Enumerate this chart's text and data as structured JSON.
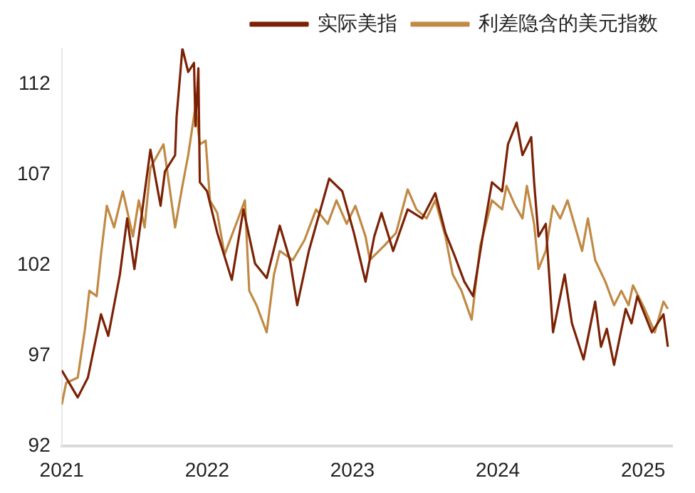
{
  "chart_data": {
    "type": "line",
    "legend": "top right",
    "grid": false,
    "marker": "none",
    "line_style": "solid",
    "xlim": [
      2021,
      2025.2
    ],
    "xticks": [
      2021,
      2022,
      2023,
      2024,
      2025
    ],
    "ylim": [
      92,
      114
    ],
    "yticks": [
      92,
      97,
      102,
      107,
      112
    ],
    "series": [
      {
        "name": "实际美指",
        "color": "#7b2205",
        "x": [
          2021.0,
          2021.11,
          2021.18,
          2021.27,
          2021.32,
          2021.4,
          2021.45,
          2021.5,
          2021.53,
          2021.61,
          2021.68,
          2021.71,
          2021.78,
          2021.79,
          2021.83,
          2021.87,
          2021.91,
          2021.92,
          2021.94,
          2021.95,
          2022.0,
          2022.07,
          2022.17,
          2022.25,
          2022.33,
          2022.41,
          2022.5,
          2022.57,
          2022.62,
          2022.7,
          2022.84,
          2022.93,
          2023.01,
          2023.09,
          2023.15,
          2023.2,
          2023.28,
          2023.38,
          2023.48,
          2023.57,
          2023.64,
          2023.7,
          2023.77,
          2023.83,
          2023.9,
          2023.96,
          2024.03,
          2024.07,
          2024.13,
          2024.17,
          2024.23,
          2024.25,
          2024.28,
          2024.33,
          2024.38,
          2024.46,
          2024.51,
          2024.59,
          2024.67,
          2024.71,
          2024.75,
          2024.8,
          2024.88,
          2024.92,
          2024.96,
          2025.06,
          2025.14,
          2025.17
        ],
        "values": [
          96.2,
          94.7,
          95.8,
          99.3,
          98.1,
          101.5,
          104.6,
          101.8,
          103.6,
          108.4,
          105.3,
          107.2,
          108.1,
          110.2,
          114.0,
          112.7,
          113.2,
          109.7,
          112.9,
          106.6,
          106.1,
          103.8,
          101.2,
          105.1,
          102.1,
          101.3,
          104.2,
          102.3,
          99.8,
          102.8,
          106.8,
          106.1,
          103.8,
          101.1,
          103.6,
          104.9,
          102.8,
          105.1,
          104.6,
          106.0,
          103.8,
          102.6,
          101.1,
          100.3,
          103.8,
          106.6,
          106.1,
          108.7,
          109.9,
          108.1,
          109.1,
          106.6,
          103.6,
          104.3,
          98.3,
          101.5,
          98.8,
          96.8,
          100.0,
          97.5,
          98.5,
          96.5,
          99.6,
          98.8,
          100.3,
          98.3,
          99.3,
          97.5
        ]
      },
      {
        "name": "利差隐含的美元指数",
        "color": "#c08a45",
        "x": [
          2021.0,
          2021.03,
          2021.11,
          2021.16,
          2021.19,
          2021.24,
          2021.27,
          2021.31,
          2021.36,
          2021.42,
          2021.49,
          2021.53,
          2021.57,
          2021.61,
          2021.7,
          2021.78,
          2021.83,
          2021.87,
          2021.92,
          2021.95,
          2021.99,
          2022.02,
          2022.07,
          2022.12,
          2022.2,
          2022.26,
          2022.29,
          2022.34,
          2022.41,
          2022.46,
          2022.5,
          2022.59,
          2022.67,
          2022.75,
          2022.83,
          2022.89,
          2022.96,
          2023.02,
          2023.09,
          2023.12,
          2023.22,
          2023.3,
          2023.38,
          2023.44,
          2023.51,
          2023.57,
          2023.64,
          2023.69,
          2023.75,
          2023.82,
          2023.88,
          2023.96,
          2024.03,
          2024.06,
          2024.12,
          2024.17,
          2024.2,
          2024.25,
          2024.28,
          2024.33,
          2024.38,
          2024.43,
          2024.48,
          2024.58,
          2024.62,
          2024.67,
          2024.74,
          2024.8,
          2024.85,
          2024.9,
          2024.93,
          2025.01,
          2025.08,
          2025.14,
          2025.17
        ],
        "values": [
          94.3,
          95.5,
          95.8,
          98.5,
          100.6,
          100.3,
          102.6,
          105.3,
          104.1,
          106.1,
          103.6,
          105.6,
          104.1,
          107.4,
          108.7,
          104.1,
          106.4,
          108.1,
          110.8,
          108.7,
          108.9,
          105.6,
          104.9,
          102.6,
          104.3,
          105.6,
          100.6,
          99.8,
          98.3,
          101.5,
          102.8,
          102.3,
          103.4,
          105.1,
          104.3,
          105.6,
          104.3,
          105.3,
          103.6,
          102.3,
          103.1,
          103.8,
          106.2,
          105.1,
          104.6,
          105.6,
          103.6,
          101.5,
          100.6,
          99.0,
          103.1,
          105.6,
          105.1,
          106.4,
          105.3,
          104.6,
          106.4,
          104.3,
          101.8,
          102.8,
          105.3,
          104.6,
          105.6,
          102.8,
          104.6,
          102.3,
          101.1,
          99.8,
          100.6,
          99.8,
          100.9,
          99.6,
          98.3,
          100.0,
          99.6
        ]
      }
    ]
  }
}
